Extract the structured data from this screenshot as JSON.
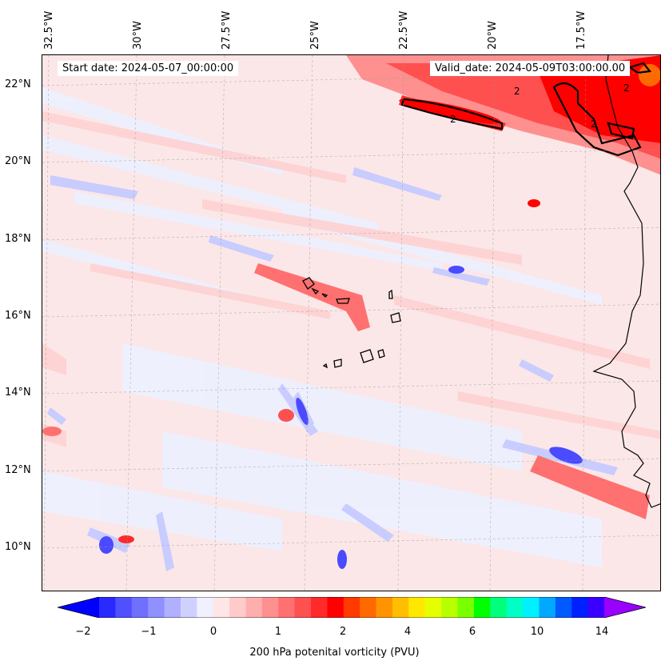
{
  "map": {
    "start_date": "Start date: 2024-05-07_00:00:00",
    "valid_date": "Valid_date: 2024-05-09T03:00:00.00",
    "lon_labels": [
      "32.5°W",
      "30°W",
      "27.5°W",
      "25°W",
      "22.5°W",
      "20°W",
      "17.5°W"
    ],
    "lat_labels": [
      "22°N",
      "20°N",
      "18°N",
      "16°N",
      "14°N",
      "12°N",
      "10°N"
    ],
    "contour_labels": [
      "2",
      "2",
      "2",
      "2"
    ]
  },
  "colorbar": {
    "ticks": [
      "−2",
      "−1",
      "0",
      "1",
      "2",
      "4",
      "6",
      "10",
      "14"
    ],
    "title": "200 hPa potenital vorticity (PVU)",
    "colors": [
      "#0000ff",
      "#2a2aff",
      "#5050ff",
      "#7070ff",
      "#9090ff",
      "#b0b0ff",
      "#d0d0ff",
      "#f0f0ff",
      "#ffe6e6",
      "#ffcaca",
      "#ffaeae",
      "#ff9090",
      "#ff7070",
      "#ff5050",
      "#ff2a2a",
      "#ff0000",
      "#ff3a00",
      "#ff6a00",
      "#ff9400",
      "#ffbe00",
      "#ffe800",
      "#e6ff00",
      "#b8ff00",
      "#7aff00",
      "#00ff00",
      "#00ff7a",
      "#00ffc4",
      "#00f0ff",
      "#00a8ff",
      "#005aff",
      "#0020ff",
      "#3a00ff",
      "#9a00ff"
    ]
  }
}
